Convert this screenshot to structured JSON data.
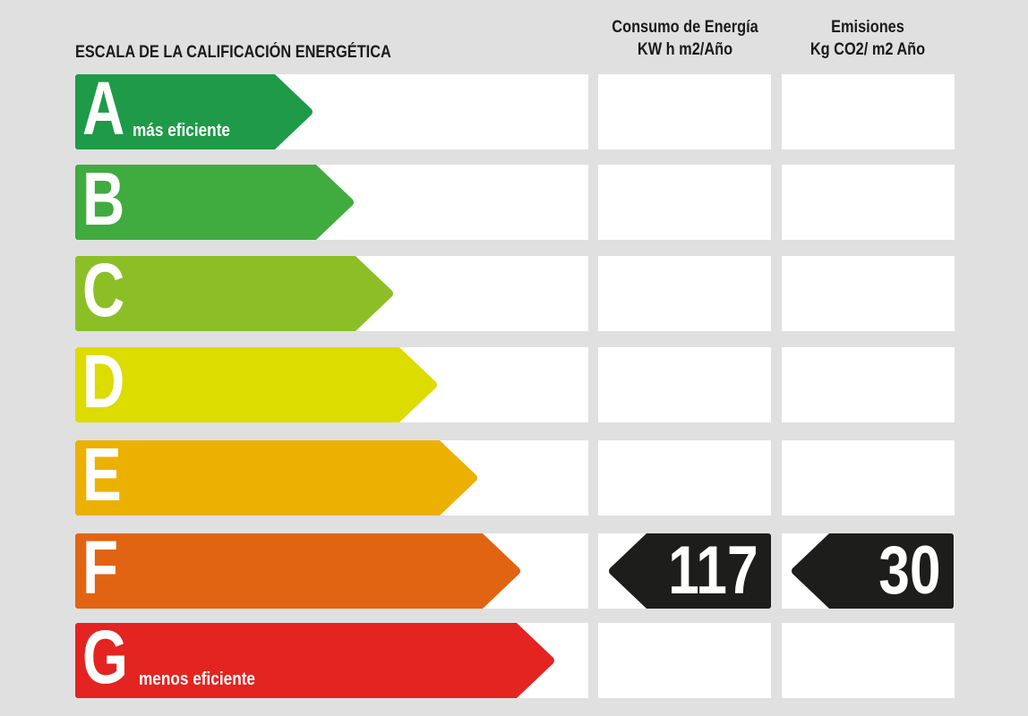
{
  "title": "ESCALA DE LA CALIFICACIÓN ENERGÉTICA",
  "columns": {
    "energy": {
      "line1": "Consumo de Energía",
      "line2": "KW h m2/Año"
    },
    "emissions": {
      "line1": "Emisiones",
      "line2": "Kg CO2/ m2 Año"
    }
  },
  "ratings": [
    {
      "letter": "A",
      "sublabel": "más eficiente",
      "color": "#1e9a48"
    },
    {
      "letter": "B",
      "sublabel": "",
      "color": "#40ab3e"
    },
    {
      "letter": "C",
      "sublabel": "",
      "color": "#8cbf26"
    },
    {
      "letter": "D",
      "sublabel": "",
      "color": "#dcdc00"
    },
    {
      "letter": "E",
      "sublabel": "",
      "color": "#ecb100"
    },
    {
      "letter": "F",
      "sublabel": "",
      "color": "#e16413"
    },
    {
      "letter": "G",
      "sublabel": "menos eficiente",
      "color": "#e32421"
    }
  ],
  "result": {
    "rating": "F",
    "energy_value": "117",
    "emissions_value": "30",
    "tag_color": "#1d1d1b"
  }
}
